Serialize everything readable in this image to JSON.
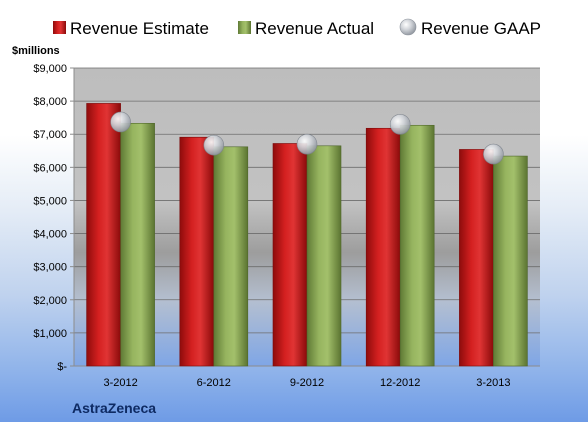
{
  "chart_data": {
    "type": "bar",
    "ylabel": "$millions",
    "categories": [
      "3-2012",
      "6-2012",
      "9-2012",
      "12-2012",
      "3-2013"
    ],
    "series": [
      {
        "name": "Revenue Estimate",
        "kind": "bar",
        "color": "#cc1a1a",
        "values": [
          7930,
          6910,
          6720,
          7180,
          6540
        ]
      },
      {
        "name": "Revenue Actual",
        "kind": "bar",
        "color": "#8aa854",
        "values": [
          7330,
          6620,
          6650,
          7270,
          6340
        ]
      },
      {
        "name": "Revenue GAAP",
        "kind": "marker",
        "color": "#b9bec6",
        "values": [
          7370,
          6670,
          6700,
          7300,
          6400
        ]
      }
    ],
    "ylim": [
      0,
      9000
    ],
    "yticks": [
      0,
      1000,
      2000,
      3000,
      4000,
      5000,
      6000,
      7000,
      8000,
      9000
    ],
    "ytick_labels": [
      "$-",
      "$1,000",
      "$2,000",
      "$3,000",
      "$4,000",
      "$5,000",
      "$6,000",
      "$7,000",
      "$8,000",
      "$9,000"
    ],
    "grid": true,
    "legend_position": "top"
  },
  "company": "AstraZeneca"
}
